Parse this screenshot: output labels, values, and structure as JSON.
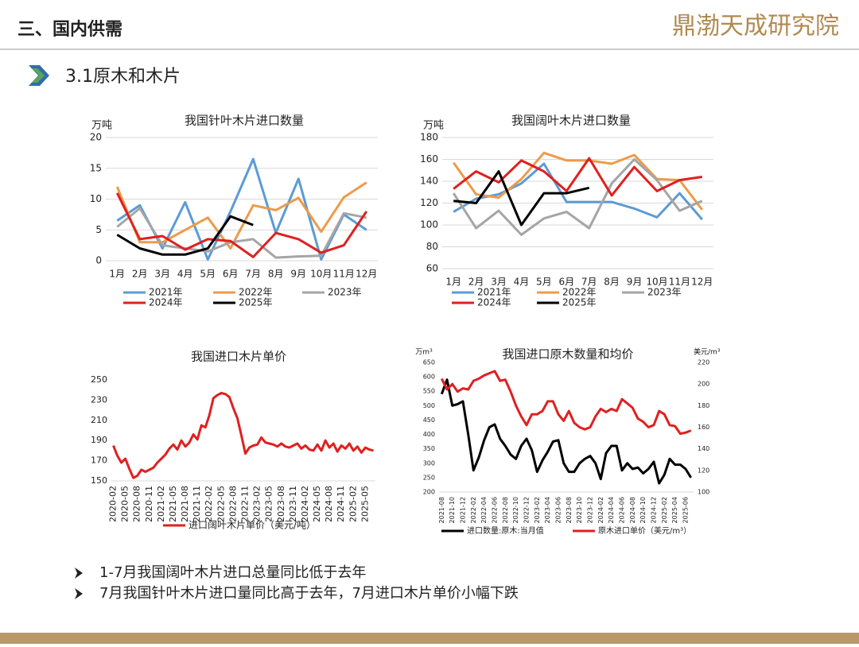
{
  "header": {
    "section": "三、国内供需",
    "logo": "鼎渤天成研究院",
    "subtitle": "3.1原木和木片"
  },
  "bullets": [
    "1-7月我国阔叶木片进口总量同比低于去年",
    "7月我国针叶木片进口量同比高于去年，7月进口木片单价小幅下跌"
  ],
  "chart_data": [
    {
      "type": "line",
      "title": "我国针叶木片进口数量",
      "y_label": "万吨",
      "categories": [
        "1月",
        "2月",
        "3月",
        "4月",
        "5月",
        "6月",
        "7月",
        "8月",
        "9月",
        "10月",
        "11月",
        "12月"
      ],
      "ylim": [
        0,
        20
      ],
      "yticks": [
        0,
        5,
        10,
        15,
        20
      ],
      "grid": true,
      "series": [
        {
          "name": "2021年",
          "color": "#5b9bd5",
          "values": [
            6.5,
            9,
            2,
            9.5,
            0.2,
            8,
            16.5,
            4.5,
            13.3,
            0.2,
            7.5,
            5
          ]
        },
        {
          "name": "2022年",
          "color": "#ed9b4a",
          "values": [
            12,
            3,
            3,
            5,
            7,
            2,
            9,
            8.2,
            10.2,
            4.7,
            10.3,
            12.7
          ]
        },
        {
          "name": "2023年",
          "color": "#a5a5a5",
          "values": [
            5.5,
            8.5,
            2.5,
            2,
            1.5,
            3,
            3.5,
            0.5,
            0.7,
            0.8,
            7.7,
            7
          ]
        },
        {
          "name": "2024年",
          "color": "#e02020",
          "values": [
            11,
            3.5,
            4,
            1.8,
            3.5,
            3.2,
            0.6,
            4.5,
            3.5,
            1.3,
            2.5,
            8
          ]
        },
        {
          "name": "2025年",
          "color": "#000000",
          "values": [
            4.2,
            2,
            1,
            1,
            2,
            7.2,
            5.8,
            null,
            null,
            null,
            null,
            null
          ]
        }
      ]
    },
    {
      "type": "line",
      "title": "我国阔叶木片进口数量",
      "y_label": "万吨",
      "categories": [
        "1月",
        "2月",
        "3月",
        "4月",
        "5月",
        "6月",
        "7月",
        "8月",
        "9月",
        "10月",
        "11月",
        "12月"
      ],
      "ylim": [
        60,
        180
      ],
      "yticks": [
        60,
        80,
        100,
        120,
        140,
        160,
        180
      ],
      "grid": true,
      "series": [
        {
          "name": "2021年",
          "color": "#5b9bd5",
          "values": [
            112,
            124,
            128,
            138,
            156,
            121,
            121,
            121,
            115,
            107,
            129,
            105
          ]
        },
        {
          "name": "2022年",
          "color": "#ed9b4a",
          "values": [
            157,
            128,
            125,
            142,
            166,
            159,
            159,
            156,
            164,
            142,
            141,
            114
          ]
        },
        {
          "name": "2023年",
          "color": "#a5a5a5",
          "values": [
            129,
            97,
            113,
            91,
            106,
            112,
            97,
            138,
            160,
            141,
            113,
            122
          ]
        },
        {
          "name": "2024年",
          "color": "#e02020",
          "values": [
            133,
            149,
            139,
            159,
            149,
            131,
            161,
            127,
            153,
            131,
            141,
            144
          ]
        },
        {
          "name": "2025年",
          "color": "#000000",
          "values": [
            122,
            120,
            149,
            100,
            129,
            129,
            134,
            null,
            null,
            null,
            null,
            null
          ]
        }
      ]
    },
    {
      "type": "line",
      "title": "我国进口木片单价",
      "categories": [
        "2020-02",
        null,
        null,
        "2020-05",
        null,
        null,
        "2020-08",
        null,
        null,
        "2020-11",
        null,
        null,
        "2021-02",
        null,
        null,
        "2021-05",
        null,
        null,
        "2021-08",
        null,
        null,
        "2021-11",
        null,
        null,
        "2022-02",
        null,
        null,
        "2022-05",
        null,
        null,
        "2022-08",
        null,
        null,
        "2022-11",
        null,
        null,
        "2023-02",
        null,
        null,
        "2023-05",
        null,
        null,
        "2023-08",
        null,
        null,
        "2023-11",
        null,
        null,
        "2024-02",
        null,
        null,
        "2024-05",
        null,
        null,
        "2024-08",
        null,
        null,
        "2024-11",
        null,
        null,
        "2025-02",
        null,
        null,
        "2025-05",
        null,
        null
      ],
      "ylim": [
        150,
        250
      ],
      "yticks": [
        150,
        170,
        190,
        210,
        230,
        250
      ],
      "grid": false,
      "series": [
        {
          "name": "进口阔叶木片单价（美元/吨）",
          "color": "#e02020",
          "values": [
            185,
            175,
            168,
            172,
            162,
            153,
            155,
            161,
            159,
            161,
            163,
            168,
            172,
            176,
            182,
            186,
            181,
            190,
            184,
            188,
            196,
            191,
            205,
            203,
            215,
            232,
            235,
            237,
            236,
            233,
            222,
            212,
            195,
            177,
            183,
            185,
            186,
            193,
            188,
            187,
            186,
            184,
            187,
            184,
            183,
            185,
            187,
            182,
            185,
            181,
            180,
            186,
            180,
            190,
            183,
            187,
            179,
            185,
            182,
            187,
            180,
            184,
            178,
            183,
            181,
            180
          ]
        }
      ]
    },
    {
      "type": "line",
      "title": "我国进口原木数量和均价",
      "y_label": "万m³",
      "y2_label": "美元/m³",
      "categories": [
        "2021-08",
        null,
        "2021-10",
        null,
        "2021-12",
        null,
        "2022-02",
        null,
        "2022-04",
        null,
        "2022-06",
        null,
        "2022-08",
        null,
        "2022-10",
        null,
        "2022-12",
        null,
        "2023-02",
        null,
        "2023-04",
        null,
        "2023-06",
        null,
        "2023-08",
        null,
        "2023-10",
        null,
        "2023-12",
        null,
        "2024-02",
        null,
        "2024-04",
        null,
        "2024-06",
        null,
        "2024-08",
        null,
        "2024-10",
        null,
        "2024-12",
        null,
        "2025-02",
        null,
        "2025-04",
        null,
        "2025-06",
        null
      ],
      "ylim": [
        200,
        650
      ],
      "yticks": [
        200,
        250,
        300,
        350,
        400,
        450,
        500,
        550,
        600,
        650
      ],
      "y2lim": [
        100,
        220
      ],
      "y2ticks": [
        100,
        120,
        140,
        160,
        180,
        200,
        220
      ],
      "grid": false,
      "series": [
        {
          "name": "进口数量:原木:当月值",
          "color": "#000000",
          "values": [
            540,
            590,
            500,
            505,
            515,
            400,
            275,
            320,
            380,
            425,
            435,
            385,
            360,
            330,
            315,
            360,
            385,
            345,
            270,
            310,
            340,
            375,
            380,
            300,
            270,
            270,
            300,
            315,
            325,
            300,
            245,
            335,
            360,
            360,
            275,
            300,
            280,
            285,
            265,
            280,
            305,
            230,
            260,
            315,
            295,
            295,
            280,
            250
          ]
        },
        {
          "name": "原木进口单价（美元/m³）",
          "color": "#e02020",
          "axis": "y2",
          "values": [
            205,
            195,
            200,
            193,
            196,
            195,
            203,
            205,
            208,
            210,
            212,
            203,
            204,
            193,
            180,
            170,
            162,
            172,
            172,
            175,
            184,
            184,
            172,
            166,
            175,
            164,
            160,
            158,
            160,
            170,
            177,
            174,
            177,
            175,
            186,
            182,
            178,
            168,
            165,
            160,
            162,
            175,
            172,
            162,
            161,
            154,
            155,
            157
          ]
        }
      ]
    }
  ]
}
